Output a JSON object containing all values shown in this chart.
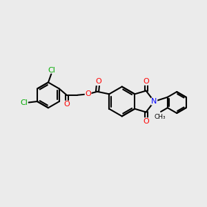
{
  "bg_color": "#ebebeb",
  "bond_color": "#000000",
  "bond_width": 1.5,
  "atom_colors": {
    "O": "#ff0000",
    "N": "#0000ff",
    "Cl": "#00aa00",
    "C": "#000000"
  },
  "font_size": 8.0
}
